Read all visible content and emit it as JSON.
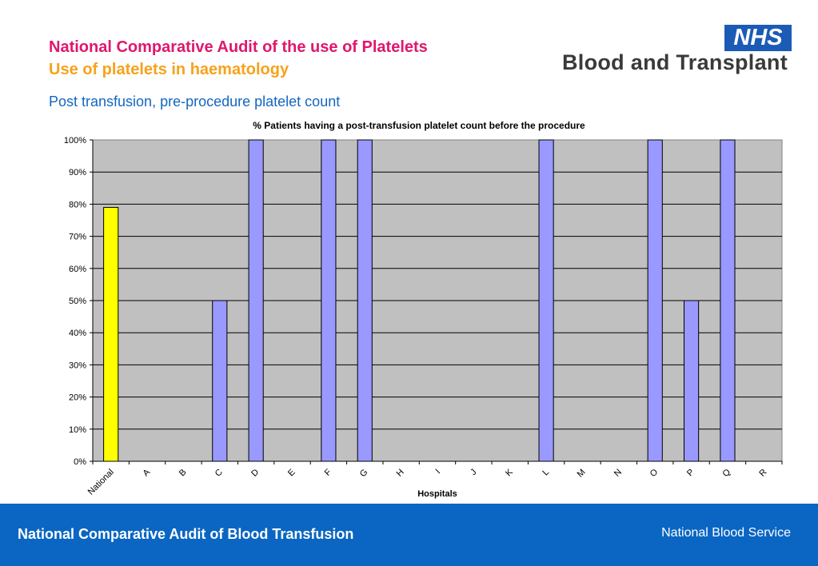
{
  "header": {
    "title": "National Comparative Audit of the use of Platelets",
    "subtitle": "Use of platelets in haematology",
    "section": "Post transfusion, pre-procedure  platelet count"
  },
  "logo": {
    "badge": "NHS",
    "name": "Blood and Transplant"
  },
  "chart_data": {
    "type": "bar",
    "title": "% Patients having a post-transfusion platelet count before the procedure",
    "xlabel": "Hospitals",
    "ylabel": "",
    "ylim": [
      0,
      100
    ],
    "y_ticks": [
      "0%",
      "10%",
      "20%",
      "30%",
      "40%",
      "50%",
      "60%",
      "70%",
      "80%",
      "90%",
      "100%"
    ],
    "categories": [
      "National",
      "A",
      "B",
      "C",
      "D",
      "E",
      "F",
      "G",
      "H",
      "I",
      "J",
      "K",
      "L",
      "M",
      "N",
      "O",
      "P",
      "Q",
      "R"
    ],
    "values": [
      79,
      0,
      0,
      50,
      100,
      0,
      100,
      100,
      0,
      0,
      0,
      0,
      100,
      0,
      0,
      100,
      50,
      100,
      0
    ],
    "grid": true,
    "plot_background": "#c0c0c0",
    "colors": {
      "national": "#ffff00",
      "hospital": "#9999ff"
    }
  },
  "footer": {
    "left": "National Comparative Audit of Blood Transfusion",
    "right": "National Blood Service"
  }
}
